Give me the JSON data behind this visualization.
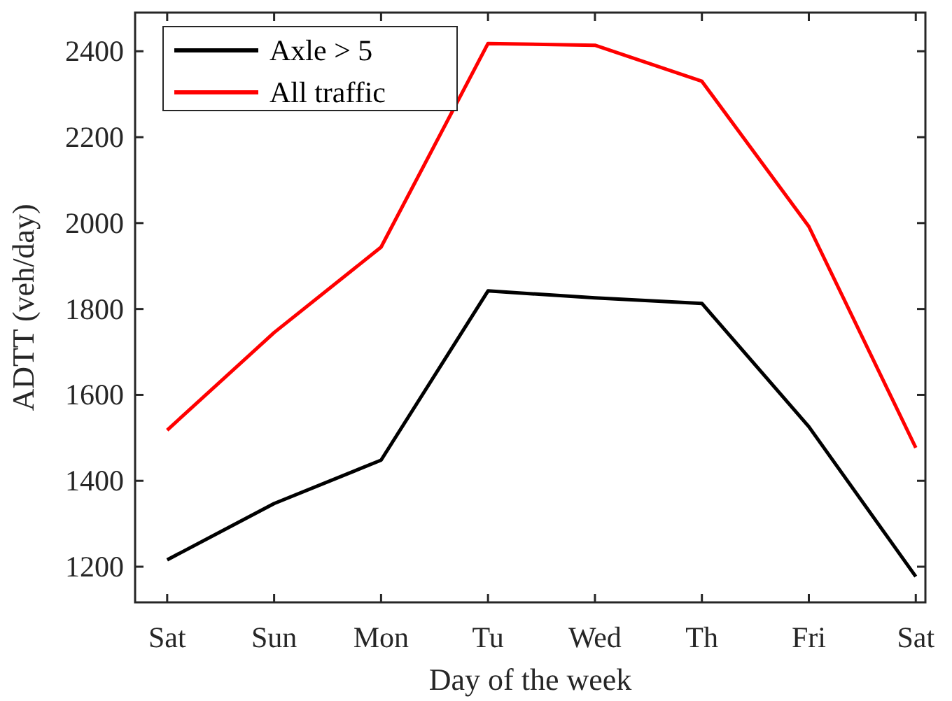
{
  "chart_data": {
    "type": "line",
    "xlabel": "Day of the week",
    "ylabel": "ADTT (veh/day)",
    "categories": [
      "Sat",
      "Sun",
      "Mon",
      "Tu",
      "Wed",
      "Th",
      "Fri",
      "Sat"
    ],
    "series": [
      {
        "name": "Axle > 5",
        "color": "#000000",
        "values": [
          1216,
          1347,
          1448,
          1842,
          1826,
          1813,
          1526,
          1177
        ]
      },
      {
        "name": "All traffic",
        "color": "#ff0000",
        "values": [
          1518,
          1745,
          1944,
          2418,
          2414,
          2330,
          1992,
          1477
        ]
      }
    ],
    "ylim": [
      1117,
      2490
    ],
    "yticks": [
      1200,
      1400,
      1600,
      1800,
      2000,
      2200,
      2400
    ],
    "grid": false,
    "legend": "top left",
    "marker": "none",
    "line_style": "solid"
  }
}
